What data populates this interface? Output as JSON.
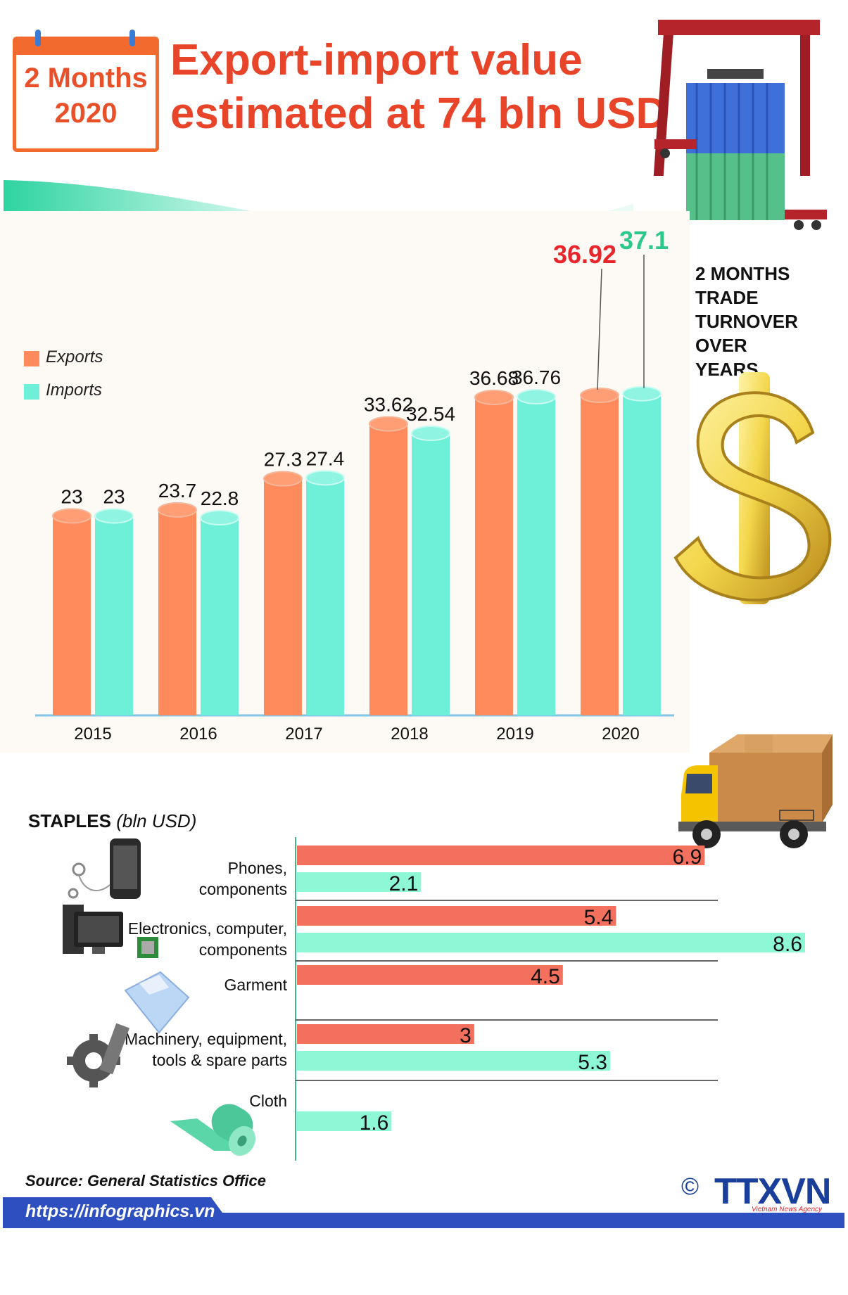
{
  "header": {
    "badge_line1": "2 Months",
    "badge_line2": "2020",
    "title_line1": "Export-import value",
    "title_line2": "estimated at 74 bln USD"
  },
  "side_label": {
    "line1": "2 MONTHS",
    "line2": "TRADE",
    "line3": "TURNOVER OVER",
    "line4": "YEARS"
  },
  "legend": {
    "exports": "Exports",
    "imports": "Imports"
  },
  "colors": {
    "exports": "#ff8a5c",
    "imports": "#6ef0d8",
    "title": "#e8442a",
    "highlight_export": "#e8252a",
    "highlight_import": "#2cc98a",
    "brand_blue": "#1a3f9a"
  },
  "chart_data": [
    {
      "type": "bar",
      "title": "2 MONTHS TRADE TURNOVER OVER YEARS",
      "categories": [
        "2015",
        "2016",
        "2017",
        "2018",
        "2019",
        "2020"
      ],
      "series": [
        {
          "name": "Exports",
          "values": [
            23,
            23.7,
            27.3,
            33.62,
            36.68,
            36.92
          ],
          "labels": [
            "23",
            "23.7",
            "27.3",
            "33.62",
            "36.68",
            "36.92"
          ]
        },
        {
          "name": "Imports",
          "values": [
            23,
            22.8,
            27.4,
            32.54,
            36.76,
            37.1
          ],
          "labels": [
            "23",
            "22.8",
            "27.4",
            "32.54",
            "36.76",
            "37.1"
          ]
        }
      ],
      "ylim": [
        0,
        40
      ],
      "xlabel": "",
      "ylabel": ""
    },
    {
      "type": "bar",
      "orientation": "horizontal",
      "title": "STAPLES",
      "unit": "(bln USD)",
      "categories": [
        "Phones, components",
        "Electronics, computer, components",
        "Garment",
        "Machinery, equipment, tools & spare parts",
        "Cloth"
      ],
      "series": [
        {
          "name": "Exports",
          "values": [
            6.9,
            5.4,
            4.5,
            3,
            null
          ],
          "labels": [
            "6.9",
            "5.4",
            "4.5",
            "3",
            ""
          ]
        },
        {
          "name": "Imports",
          "values": [
            2.1,
            8.6,
            null,
            5.3,
            1.6
          ],
          "labels": [
            "2.1",
            "8.6",
            "",
            "5.3",
            "1.6"
          ]
        }
      ],
      "xlim": [
        0,
        8.6
      ]
    }
  ],
  "staples": {
    "title": "STAPLES",
    "unit": "(bln USD)",
    "categories": [
      {
        "line1": "Phones,",
        "line2": "components"
      },
      {
        "line1": "Electronics, computer,",
        "line2": "components"
      },
      {
        "line1": "Garment",
        "line2": ""
      },
      {
        "line1": "Machinery, equipment,",
        "line2": "tools & spare parts"
      },
      {
        "line1": "Cloth",
        "line2": ""
      }
    ]
  },
  "footer": {
    "source": "Source: General Statistics Office",
    "url": "https://infographics.vn",
    "brand": "TTXVN",
    "brand_sub": "Vietnam News Agency",
    "copyright": "©"
  }
}
